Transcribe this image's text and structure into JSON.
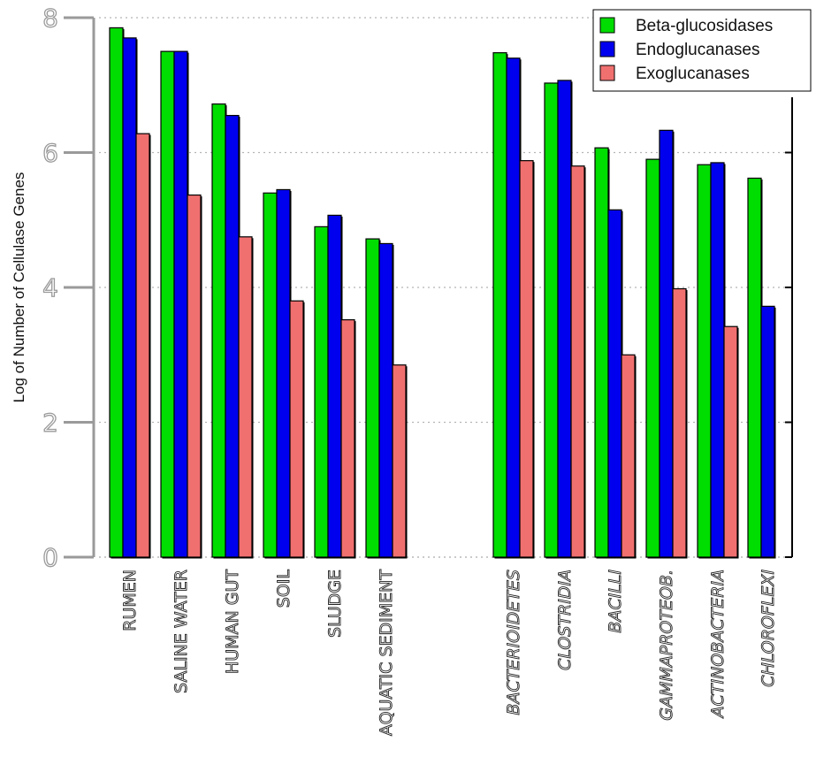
{
  "chart_data": {
    "type": "bar",
    "ylabel": "Log of Number of Cellulase Genes",
    "xlabel": "",
    "ylim": [
      0,
      8
    ],
    "yticks": [
      "0",
      "2",
      "4",
      "6",
      "8"
    ],
    "grid": "horizontal dotted",
    "legend_position": "top-right",
    "groups": [
      {
        "categories": [
          "RUMEN",
          "SALINE WATER",
          "HUMAN GUT",
          "SOIL",
          "SLUDGE",
          "AQUATIC SEDIMENT"
        ],
        "italic": false
      },
      {
        "categories": [
          "BACTERIOIDETES",
          "CLOSTRIDIA",
          "BACILLI",
          "GAMMAPROTEOB.",
          "ACTINOBACTERIA",
          "CHLOROFLEXI"
        ],
        "italic": true
      }
    ],
    "categories": [
      "RUMEN",
      "SALINE WATER",
      "HUMAN GUT",
      "SOIL",
      "SLUDGE",
      "AQUATIC SEDIMENT",
      "BACTERIOIDETES",
      "CLOSTRIDIA",
      "BACILLI",
      "GAMMAPROTEOB.",
      "ACTINOBACTERIA",
      "CHLOROFLEXI"
    ],
    "series": [
      {
        "name": "Beta-glucosidases",
        "color": "#00dd00",
        "values": [
          7.85,
          7.5,
          6.72,
          5.4,
          4.9,
          4.72,
          7.48,
          7.03,
          6.07,
          5.9,
          5.82,
          5.62
        ]
      },
      {
        "name": "Endoglucanases",
        "color": "#0000ee",
        "values": [
          7.7,
          7.5,
          6.55,
          5.45,
          5.07,
          4.65,
          7.4,
          7.07,
          5.15,
          6.33,
          5.85,
          3.72
        ]
      },
      {
        "name": "Exoglucanases",
        "color": "#f07070",
        "values": [
          6.28,
          5.37,
          4.75,
          3.8,
          3.52,
          2.85,
          5.88,
          5.8,
          3.0,
          3.98,
          3.42,
          null
        ]
      }
    ]
  }
}
